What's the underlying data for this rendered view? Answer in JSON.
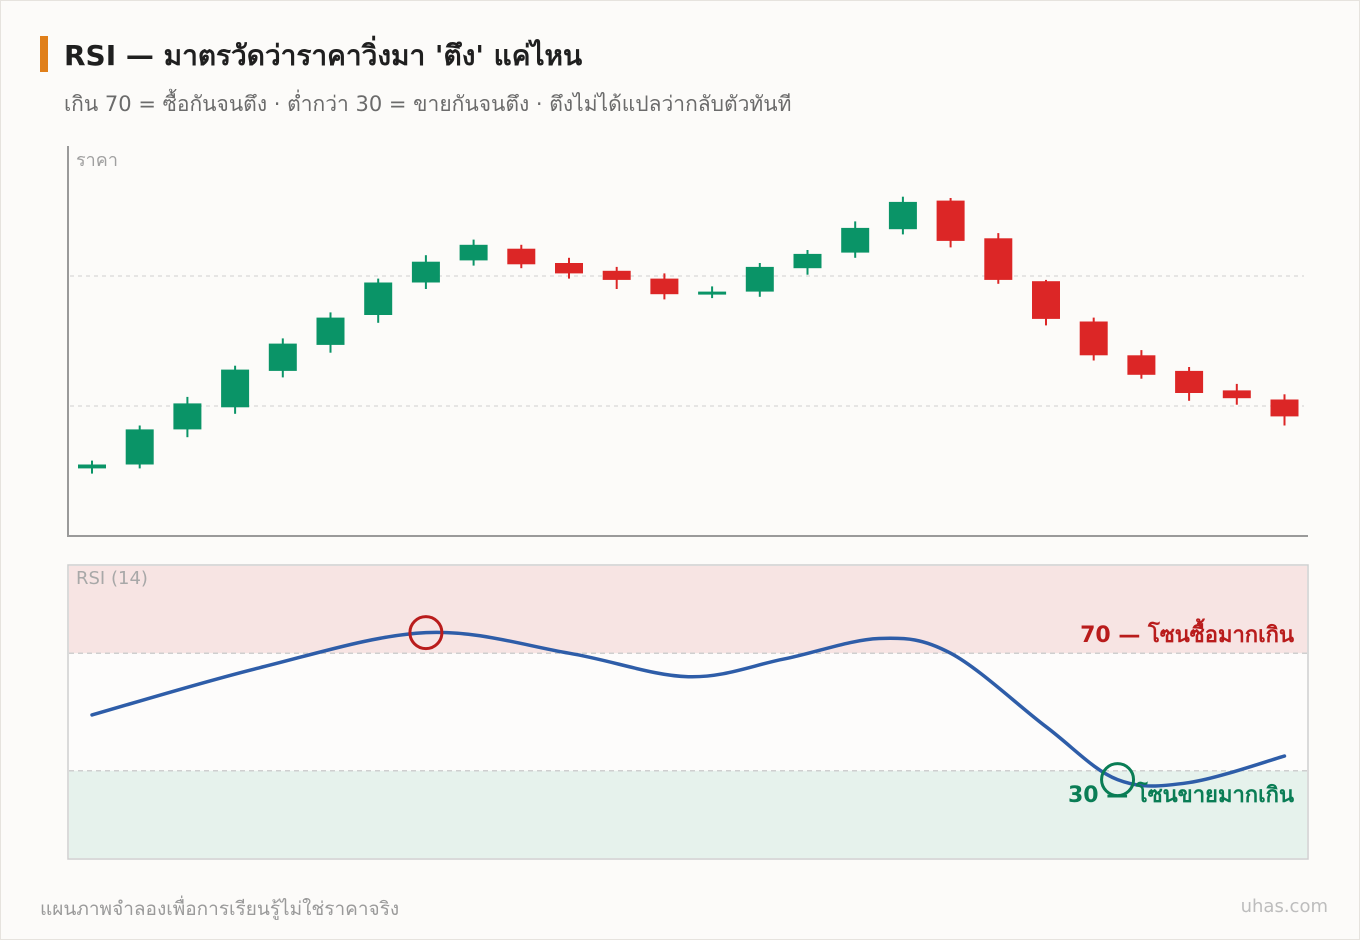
{
  "header": {
    "title": "RSI — มาตรวัดว่าราคาวิ่งมา 'ตึง' แค่ไหน",
    "subtitle": "เกิน 70 = ซื้อกันจนตึง · ต่ำกว่า 30 = ขายกันจนตึง · ตึงไม่ได้แปลว่ากลับตัวทันที"
  },
  "footer": {
    "note": "แผนภาพจำลองเพื่อการเรียนรู้ไม่ใช่ราคาจริง",
    "brand": "uhas.com"
  },
  "colors": {
    "accent": "#e07f1a",
    "up": "#0a9467",
    "down": "#dc2626",
    "rsi_line": "#2e5da8",
    "overbought": "#b91c1c",
    "oversold": "#0a7d55"
  },
  "chart_data": [
    {
      "type": "candlestick",
      "ylabel": "ราคา",
      "ylim": [
        0,
        300
      ],
      "grid_lines": [
        200,
        100
      ],
      "candles": [
        {
          "o": 52,
          "c": 55,
          "h": 58,
          "l": 48
        },
        {
          "o": 55,
          "c": 82,
          "h": 85,
          "l": 52
        },
        {
          "o": 82,
          "c": 102,
          "h": 107,
          "l": 76
        },
        {
          "o": 99,
          "c": 128,
          "h": 131,
          "l": 94
        },
        {
          "o": 127,
          "c": 148,
          "h": 152,
          "l": 122
        },
        {
          "o": 147,
          "c": 168,
          "h": 172,
          "l": 141
        },
        {
          "o": 170,
          "c": 195,
          "h": 198,
          "l": 164
        },
        {
          "o": 195,
          "c": 211,
          "h": 216,
          "l": 190
        },
        {
          "o": 212,
          "c": 224,
          "h": 228,
          "l": 208
        },
        {
          "o": 221,
          "c": 209,
          "h": 224,
          "l": 206
        },
        {
          "o": 210,
          "c": 202,
          "h": 214,
          "l": 198
        },
        {
          "o": 204,
          "c": 197,
          "h": 207,
          "l": 190
        },
        {
          "o": 198,
          "c": 186,
          "h": 202,
          "l": 182
        },
        {
          "o": 186,
          "c": 188,
          "h": 192,
          "l": 183
        },
        {
          "o": 188,
          "c": 207,
          "h": 210,
          "l": 184
        },
        {
          "o": 206,
          "c": 217,
          "h": 220,
          "l": 201
        },
        {
          "o": 218,
          "c": 237,
          "h": 242,
          "l": 214
        },
        {
          "o": 236,
          "c": 257,
          "h": 261,
          "l": 232
        },
        {
          "o": 258,
          "c": 227,
          "h": 260,
          "l": 222
        },
        {
          "o": 229,
          "c": 197,
          "h": 233,
          "l": 194
        },
        {
          "o": 196,
          "c": 167,
          "h": 197,
          "l": 162
        },
        {
          "o": 165,
          "c": 139,
          "h": 168,
          "l": 135
        },
        {
          "o": 139,
          "c": 124,
          "h": 143,
          "l": 121
        },
        {
          "o": 127,
          "c": 110,
          "h": 130,
          "l": 104
        },
        {
          "o": 112,
          "c": 106,
          "h": 117,
          "l": 101
        },
        {
          "o": 105,
          "c": 92,
          "h": 109,
          "l": 85
        }
      ]
    },
    {
      "type": "line",
      "ylabel": "RSI (14)",
      "ylim": [
        0,
        100
      ],
      "series": [
        {
          "values": [
            {
              "x": 0.0,
              "y": 49
            },
            {
              "x": 3.5,
              "y": 65
            },
            {
              "x": 7.0,
              "y": 77
            },
            {
              "x": 10.0,
              "y": 70
            },
            {
              "x": 12.5,
              "y": 62
            },
            {
              "x": 14.5,
              "y": 68
            },
            {
              "x": 16.5,
              "y": 75
            },
            {
              "x": 18.0,
              "y": 70
            },
            {
              "x": 20.0,
              "y": 45
            },
            {
              "x": 21.5,
              "y": 27
            },
            {
              "x": 23.0,
              "y": 26
            },
            {
              "x": 25.0,
              "y": 35
            }
          ]
        }
      ],
      "zones": [
        {
          "from": 70,
          "to": 100,
          "label": "70 — โซนซื้อมากเกิน"
        },
        {
          "from": 0,
          "to": 30,
          "label": "30 — โซนขายมากเกิน"
        }
      ],
      "markers": [
        {
          "x": 7.0,
          "y": 77
        },
        {
          "x": 21.5,
          "y": 27
        }
      ]
    }
  ]
}
